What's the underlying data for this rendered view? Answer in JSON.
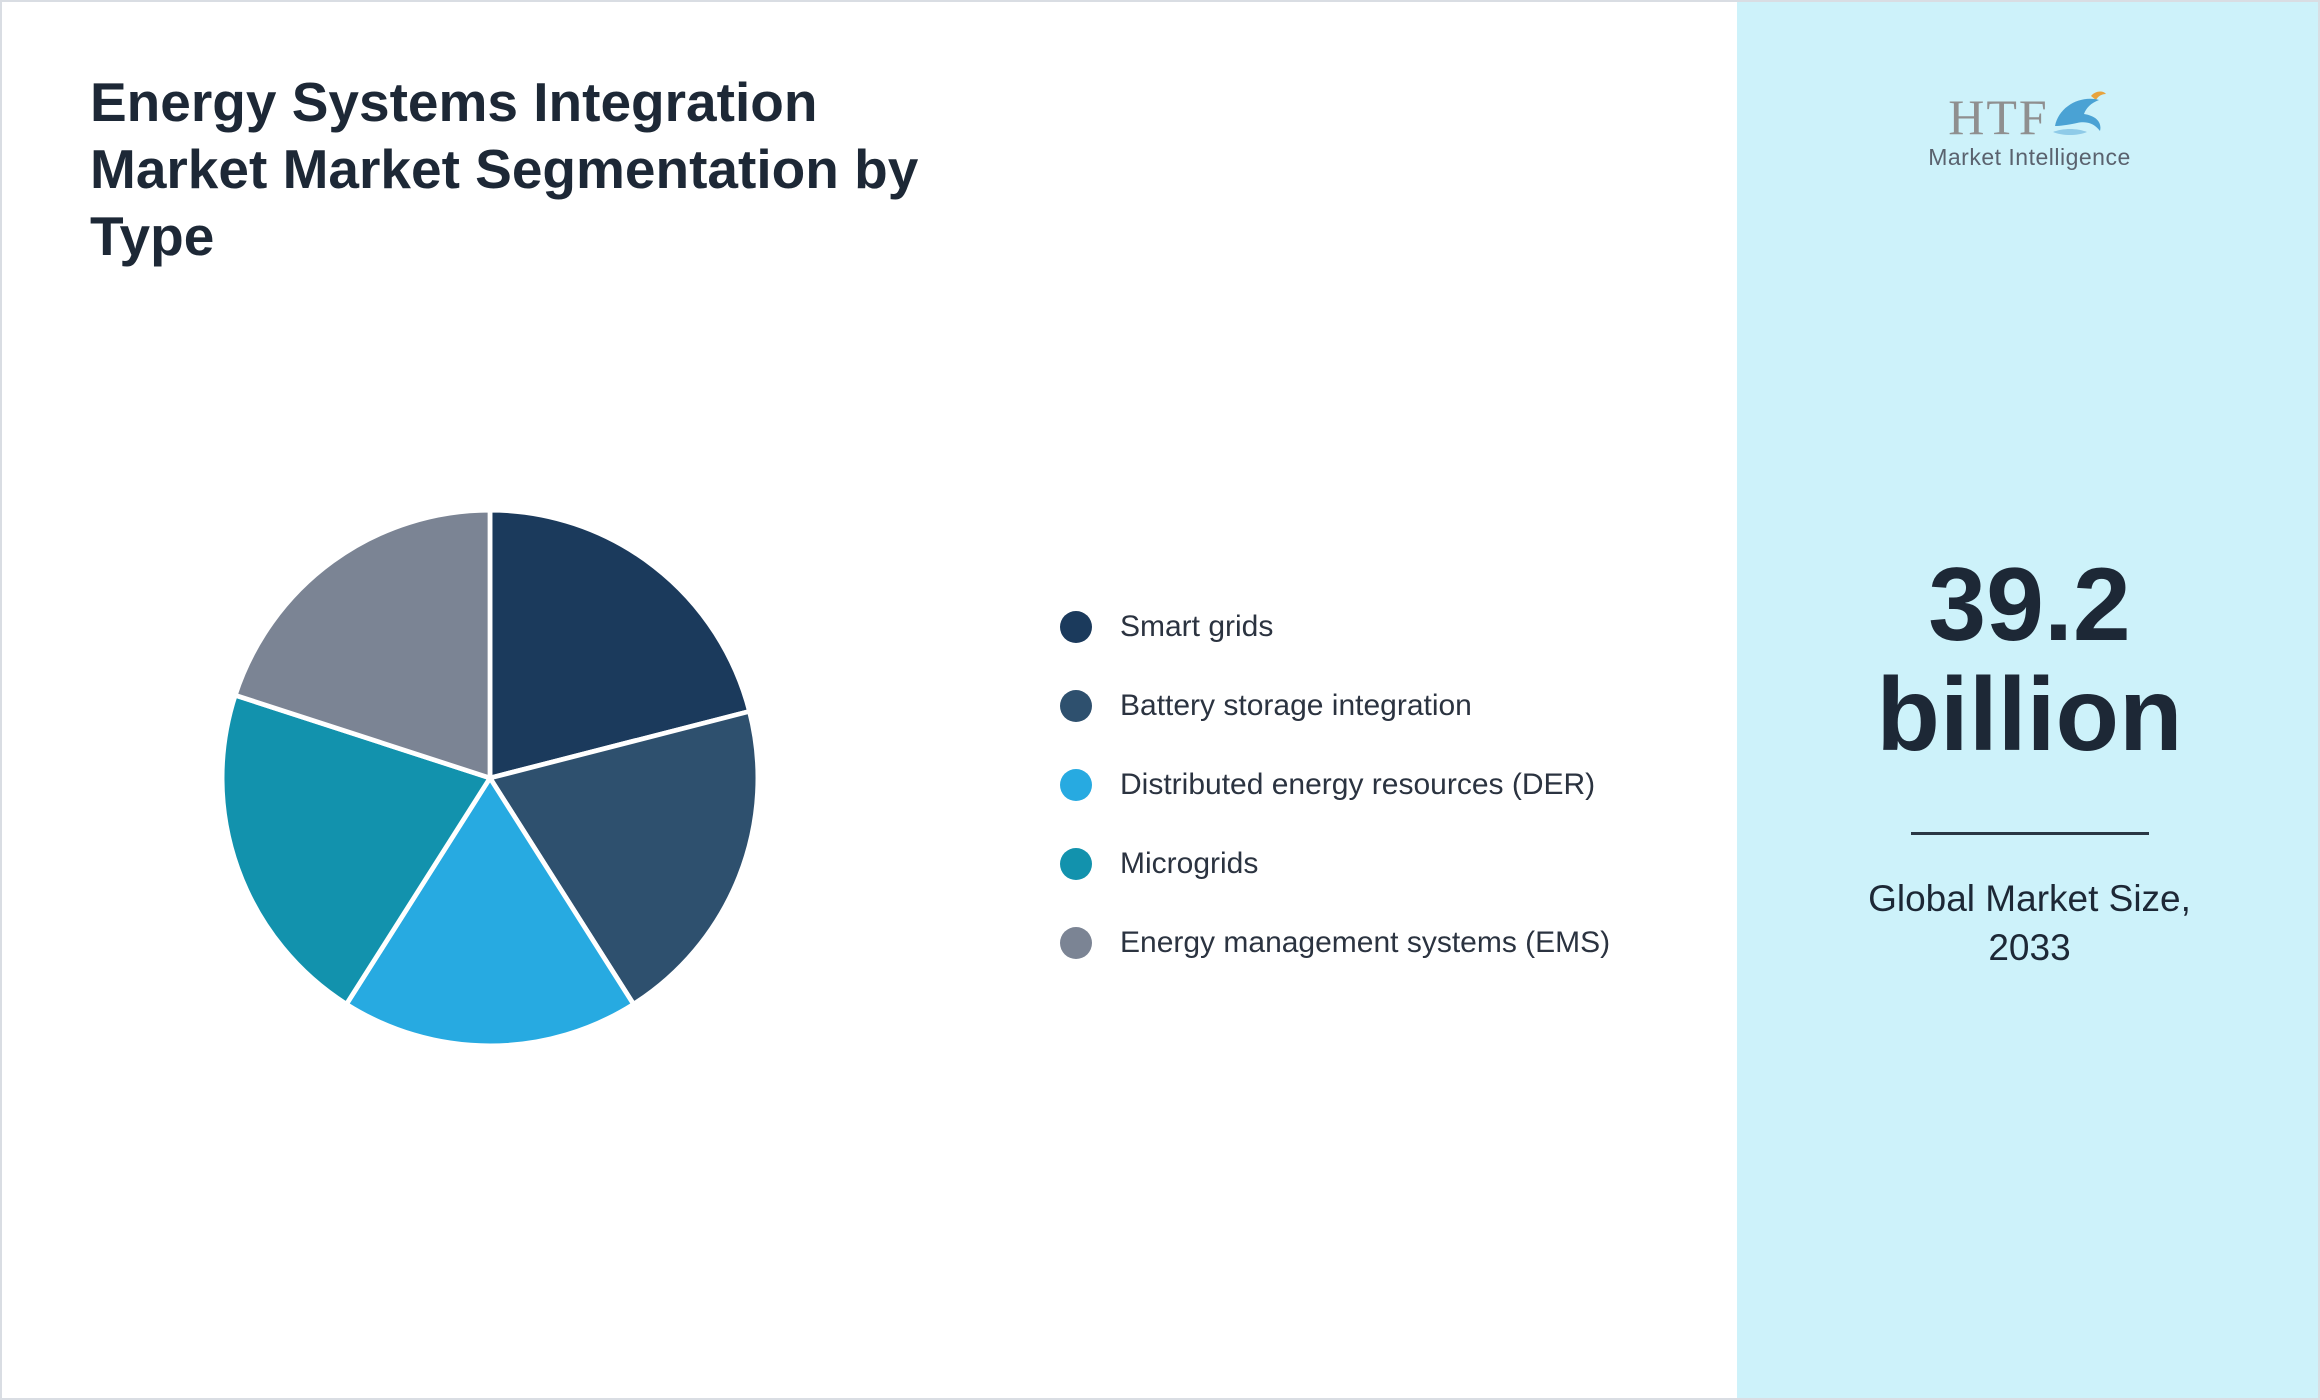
{
  "page": {
    "title": "Energy Systems Integration Market Market Segmentation by Type"
  },
  "side_panel": {
    "logo": {
      "text": "HTF",
      "subtext": "Market Intelligence"
    },
    "market_size": {
      "value": "39.2 billion",
      "caption": "Global Market Size, 2033"
    }
  },
  "theme": {
    "panel_background": "#cdf2fa",
    "text_dark": "#1d2836",
    "divider": "#2a3744"
  },
  "chart_data": {
    "type": "pie",
    "title": "Energy Systems Integration Market Market Segmentation by Type",
    "labels": [
      "Smart grids",
      "Battery storage integration",
      "Distributed energy resources (DER)",
      "Microgrids",
      "Energy management systems (EMS)"
    ],
    "values": [
      21,
      20,
      18,
      21,
      20
    ],
    "colors": [
      "#1b3a5c",
      "#2e506e",
      "#27aae1",
      "#1292ad",
      "#7b8494"
    ],
    "legend_position": "right",
    "start_angle_deg": 0,
    "direction": "clockwise",
    "slice_separator_color": "#ffffff"
  }
}
